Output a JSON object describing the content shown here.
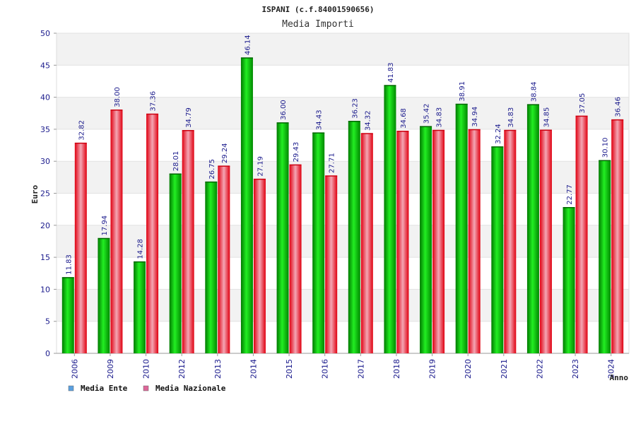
{
  "chart_data": {
    "type": "bar",
    "title": "ISPANI (c.f.84001590656)",
    "subtitle": "Media Importi",
    "xlabel": "Anno",
    "ylabel": "Euro",
    "ylim": [
      0,
      50
    ],
    "yticks": [
      0,
      5,
      10,
      15,
      20,
      25,
      30,
      35,
      40,
      45,
      50
    ],
    "grid": true,
    "legend_position": "bottom-left",
    "categories": [
      "2006",
      "2009",
      "2010",
      "2012",
      "2013",
      "2014",
      "2015",
      "2016",
      "2017",
      "2018",
      "2019",
      "2020",
      "2021",
      "2022",
      "2023",
      "2024"
    ],
    "series": [
      {
        "name": "Media Ente",
        "color": "#00cc00",
        "legend_color": "#5aa0e0",
        "values": [
          11.83,
          17.94,
          14.28,
          28.01,
          26.75,
          46.14,
          36.0,
          34.43,
          36.23,
          41.83,
          35.42,
          38.91,
          32.24,
          38.84,
          22.77,
          30.1
        ],
        "labels": [
          "11.83",
          "17.94",
          "14.28",
          "28.01",
          "26.75",
          "46.14",
          "36.00",
          "34.43",
          "36.23",
          "41.83",
          "35.42",
          "38.91",
          "32.24",
          "38.84",
          "22.77",
          "30.10"
        ]
      },
      {
        "name": "Media Nazionale",
        "color": "#ee1122",
        "legend_color": "#dd6699",
        "values": [
          32.82,
          38.0,
          37.36,
          34.79,
          29.24,
          27.19,
          29.43,
          27.71,
          34.32,
          34.68,
          34.83,
          34.94,
          34.83,
          34.85,
          37.05,
          36.46
        ],
        "labels": [
          "32.82",
          "38.00",
          "37.36",
          "34.79",
          "29.24",
          "27.19",
          "29.43",
          "27.71",
          "34.32",
          "34.68",
          "34.83",
          "34.94",
          "34.83",
          "34.85",
          "37.05",
          "36.46"
        ]
      }
    ]
  }
}
